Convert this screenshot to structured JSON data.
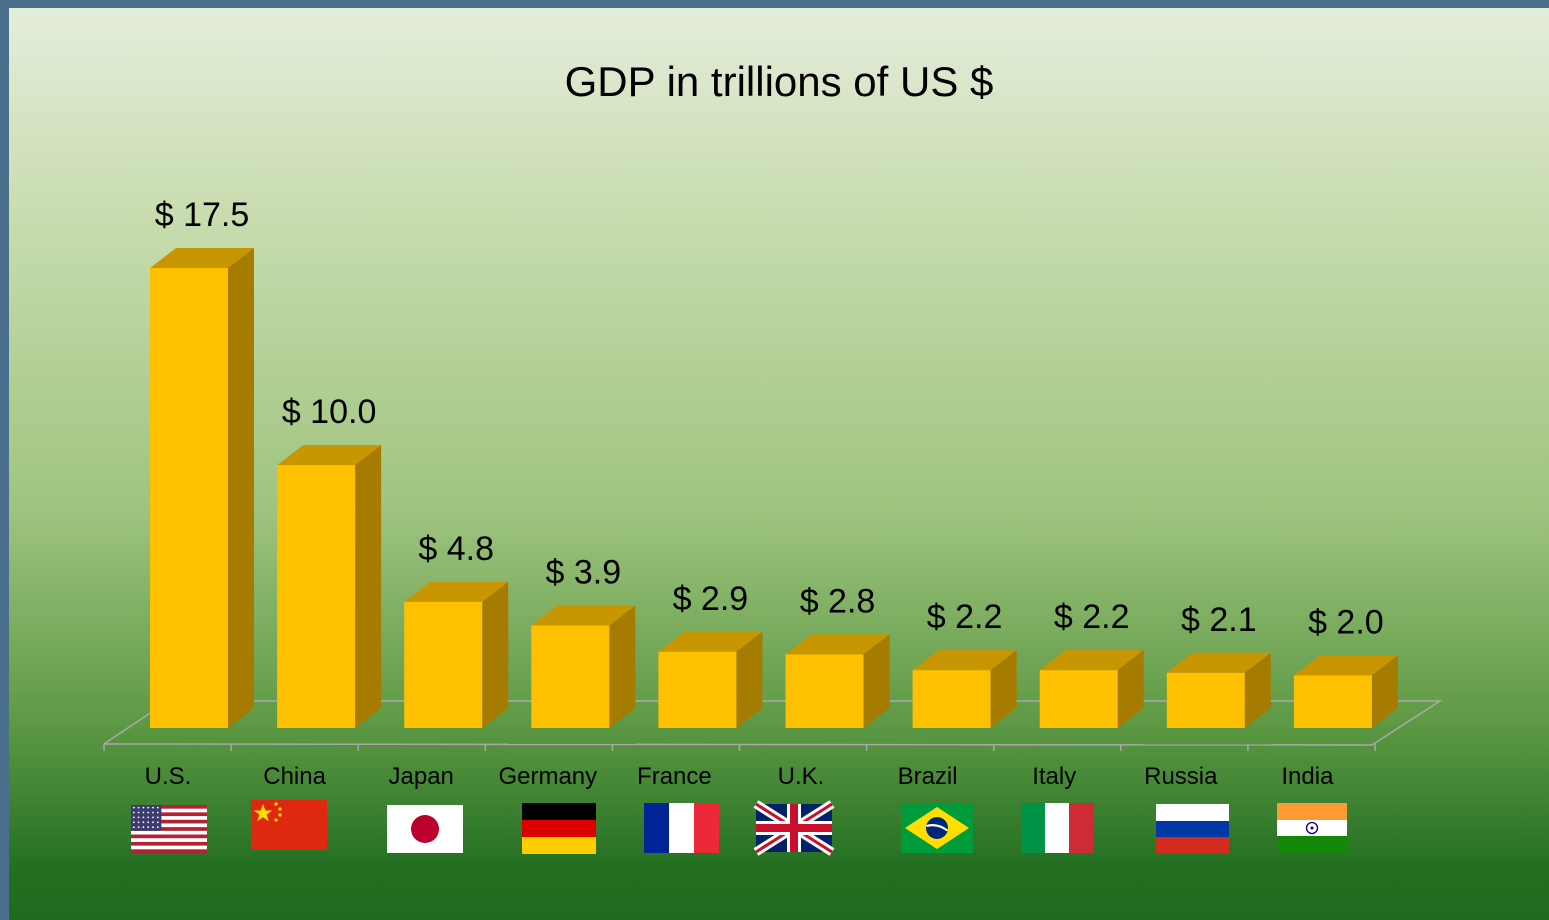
{
  "chart_data": {
    "type": "bar",
    "title": "GDP in trillions of US $",
    "xlabel": "",
    "ylabel": "",
    "ylim": [
      0,
      18
    ],
    "grid": false,
    "legend": "none",
    "categories": [
      "U.S.",
      "China",
      "Japan",
      "Germany",
      "France",
      "U.K.",
      "Brazil",
      "Italy",
      "Russia",
      "India"
    ],
    "values": [
      17.5,
      10.0,
      4.8,
      3.9,
      2.9,
      2.8,
      2.2,
      2.2,
      2.1,
      2.0
    ],
    "data_labels": [
      "$ 17.5",
      "$ 10.0",
      "$ 4.8",
      "$ 3.9",
      "$ 2.9",
      "$ 2.8",
      "$ 2.2",
      "$ 2.2",
      "$ 2.1",
      "$ 2.0"
    ],
    "flags": [
      "us-flag",
      "china-flag",
      "japan-flag",
      "germany-flag",
      "france-flag",
      "uk-flag",
      "brazil-flag",
      "italy-flag",
      "russia-flag",
      "india-flag"
    ],
    "colors": {
      "bar_front": "#ffc000",
      "bar_top": "#c89600",
      "bar_side": "#a67c00",
      "floor_line": "#a9a9a9"
    }
  }
}
